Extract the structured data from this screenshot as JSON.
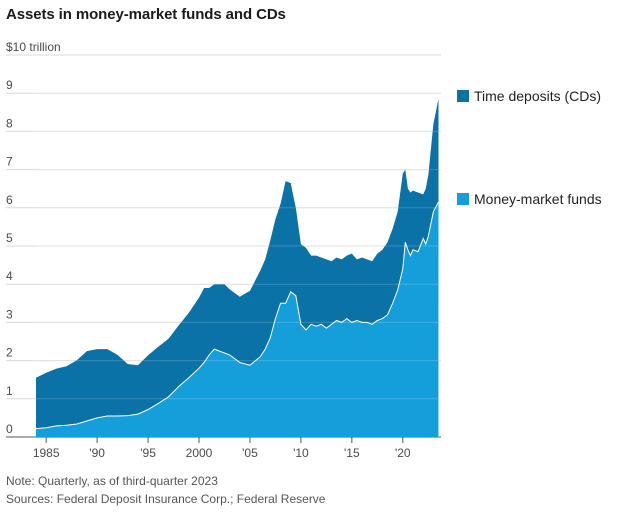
{
  "title": "Assets in money-market funds and CDs",
  "note": "Note: Quarterly, as of third-quarter 2023",
  "source": "Sources: Federal Deposit Insurance Corp.; Federal Reserve",
  "colors": {
    "time_deposits": "#0b72a8",
    "money_market": "#159fda",
    "grid": "#d9d9d9",
    "boundary_line": "#ffffff"
  },
  "chart_data": {
    "type": "area",
    "stacked": true,
    "title": "Assets in money-market funds and CDs",
    "ylabel": "$10 trillion",
    "ylim": [
      0,
      10
    ],
    "xlim": [
      1984,
      2023.75
    ],
    "y_ticks": [
      {
        "value": 0,
        "label": "0"
      },
      {
        "value": 1,
        "label": "1"
      },
      {
        "value": 2,
        "label": "2"
      },
      {
        "value": 3,
        "label": "3"
      },
      {
        "value": 4,
        "label": "4"
      },
      {
        "value": 5,
        "label": "5"
      },
      {
        "value": 6,
        "label": "6"
      },
      {
        "value": 7,
        "label": "7"
      },
      {
        "value": 8,
        "label": "8"
      },
      {
        "value": 9,
        "label": "9"
      },
      {
        "value": 10,
        "label": "$10 trillion"
      }
    ],
    "x_ticks": [
      {
        "value": 1985,
        "label": "1985"
      },
      {
        "value": 1990,
        "label": "'90"
      },
      {
        "value": 1995,
        "label": "'95"
      },
      {
        "value": 2000,
        "label": "2000"
      },
      {
        "value": 2005,
        "label": "'05"
      },
      {
        "value": 2010,
        "label": "'10"
      },
      {
        "value": 2015,
        "label": "'15"
      },
      {
        "value": 2020,
        "label": "'20"
      }
    ],
    "series": [
      {
        "name": "Money-market funds",
        "color": "#159fda",
        "points": [
          [
            1984,
            0.22
          ],
          [
            1985,
            0.24
          ],
          [
            1986,
            0.29
          ],
          [
            1987,
            0.31
          ],
          [
            1988,
            0.34
          ],
          [
            1989,
            0.42
          ],
          [
            1990,
            0.5
          ],
          [
            1991,
            0.55
          ],
          [
            1992,
            0.55
          ],
          [
            1993,
            0.56
          ],
          [
            1994,
            0.6
          ],
          [
            1995,
            0.72
          ],
          [
            1996,
            0.88
          ],
          [
            1997,
            1.05
          ],
          [
            1998,
            1.32
          ],
          [
            1999,
            1.55
          ],
          [
            2000,
            1.8
          ],
          [
            2000.5,
            1.95
          ],
          [
            2001,
            2.15
          ],
          [
            2001.5,
            2.3
          ],
          [
            2002,
            2.25
          ],
          [
            2002.5,
            2.2
          ],
          [
            2003,
            2.15
          ],
          [
            2004,
            1.95
          ],
          [
            2005,
            1.88
          ],
          [
            2006,
            2.1
          ],
          [
            2006.5,
            2.3
          ],
          [
            2007,
            2.6
          ],
          [
            2007.5,
            3.1
          ],
          [
            2008,
            3.5
          ],
          [
            2008.5,
            3.5
          ],
          [
            2009,
            3.8
          ],
          [
            2009.5,
            3.7
          ],
          [
            2010,
            2.95
          ],
          [
            2010.5,
            2.8
          ],
          [
            2011,
            2.95
          ],
          [
            2011.5,
            2.9
          ],
          [
            2012,
            2.95
          ],
          [
            2012.5,
            2.85
          ],
          [
            2013,
            2.95
          ],
          [
            2013.5,
            3.05
          ],
          [
            2014,
            3.0
          ],
          [
            2014.5,
            3.1
          ],
          [
            2015,
            3.0
          ],
          [
            2015.5,
            3.05
          ],
          [
            2016,
            3.0
          ],
          [
            2016.5,
            3.0
          ],
          [
            2017,
            2.95
          ],
          [
            2017.5,
            3.05
          ],
          [
            2018,
            3.1
          ],
          [
            2018.5,
            3.2
          ],
          [
            2019,
            3.5
          ],
          [
            2019.5,
            3.85
          ],
          [
            2020,
            4.4
          ],
          [
            2020.25,
            5.1
          ],
          [
            2020.5,
            4.9
          ],
          [
            2020.75,
            4.75
          ],
          [
            2021,
            4.9
          ],
          [
            2021.5,
            4.85
          ],
          [
            2022,
            5.2
          ],
          [
            2022.25,
            5.05
          ],
          [
            2022.5,
            5.25
          ],
          [
            2023,
            5.9
          ],
          [
            2023.5,
            6.15
          ]
        ]
      },
      {
        "name": "Time deposits (CDs)",
        "color": "#0b72a8",
        "points": [
          [
            1984,
            1.33
          ],
          [
            1985,
            1.44
          ],
          [
            1986,
            1.5
          ],
          [
            1987,
            1.54
          ],
          [
            1988,
            1.67
          ],
          [
            1989,
            1.83
          ],
          [
            1990,
            1.8
          ],
          [
            1991,
            1.75
          ],
          [
            1992,
            1.6
          ],
          [
            1993,
            1.35
          ],
          [
            1994,
            1.28
          ],
          [
            1995,
            1.42
          ],
          [
            1996,
            1.48
          ],
          [
            1997,
            1.52
          ],
          [
            1998,
            1.6
          ],
          [
            1999,
            1.7
          ],
          [
            2000,
            1.85
          ],
          [
            2000.5,
            1.95
          ],
          [
            2001,
            1.75
          ],
          [
            2001.5,
            1.7
          ],
          [
            2002,
            1.75
          ],
          [
            2002.5,
            1.8
          ],
          [
            2003,
            1.72
          ],
          [
            2004,
            1.72
          ],
          [
            2005,
            1.95
          ],
          [
            2006,
            2.25
          ],
          [
            2006.5,
            2.35
          ],
          [
            2007,
            2.55
          ],
          [
            2007.5,
            2.6
          ],
          [
            2008,
            2.6
          ],
          [
            2008.5,
            3.2
          ],
          [
            2009,
            2.85
          ],
          [
            2009.5,
            2.3
          ],
          [
            2010,
            2.1
          ],
          [
            2010.5,
            2.15
          ],
          [
            2011,
            1.8
          ],
          [
            2011.5,
            1.85
          ],
          [
            2012,
            1.75
          ],
          [
            2012.5,
            1.8
          ],
          [
            2013,
            1.65
          ],
          [
            2013.5,
            1.65
          ],
          [
            2014,
            1.65
          ],
          [
            2014.5,
            1.65
          ],
          [
            2015,
            1.8
          ],
          [
            2015.5,
            1.6
          ],
          [
            2016,
            1.7
          ],
          [
            2016.5,
            1.65
          ],
          [
            2017,
            1.65
          ],
          [
            2017.5,
            1.75
          ],
          [
            2018,
            1.8
          ],
          [
            2018.5,
            1.9
          ],
          [
            2019,
            1.95
          ],
          [
            2019.5,
            2.05
          ],
          [
            2020,
            2.5
          ],
          [
            2020.25,
            1.9
          ],
          [
            2020.5,
            1.6
          ],
          [
            2020.75,
            1.65
          ],
          [
            2021,
            1.55
          ],
          [
            2021.5,
            1.55
          ],
          [
            2022,
            1.15
          ],
          [
            2022.25,
            1.45
          ],
          [
            2022.5,
            1.6
          ],
          [
            2023,
            2.3
          ],
          [
            2023.5,
            2.7
          ]
        ]
      }
    ],
    "legend": [
      {
        "label": "Time deposits (CDs)",
        "color": "#0b72a8"
      },
      {
        "label": "Money-market funds",
        "color": "#159fda"
      }
    ],
    "legend_position": "right"
  }
}
